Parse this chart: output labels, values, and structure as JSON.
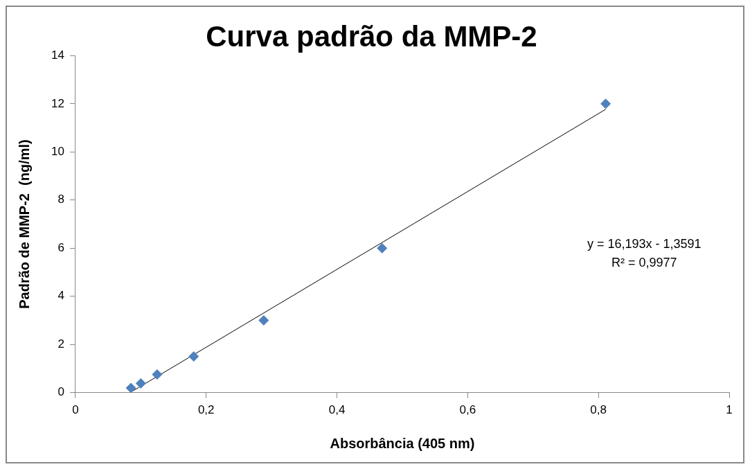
{
  "chart_data": {
    "type": "scatter",
    "title": "Curva padrão da MMP-2",
    "xlabel": "Absorbância (405 nm)",
    "ylabel": "Padrão de MMP-2  (ng/ml)",
    "series": [
      {
        "color": "#4f81bd",
        "marker": "diamond",
        "x": [
          0.085,
          0.1,
          0.125,
          0.181,
          0.288,
          0.469,
          0.811
        ],
        "values": [
          0.19,
          0.38,
          0.75,
          1.5,
          3,
          6,
          12
        ]
      },
      {
        "type": "line",
        "color": "#000000",
        "marker": "none",
        "x": [
          0.085,
          0.811
        ],
        "values": [
          0.02,
          11.77
        ]
      }
    ],
    "xlim": [
      0,
      1
    ],
    "xticks": [
      0,
      {
        "value": 0.2,
        "label": "0,2"
      },
      {
        "value": 0.4,
        "label": "0,4"
      },
      {
        "value": 0.6,
        "label": "0,6"
      },
      {
        "value": 0.8,
        "label": "0,8"
      },
      1
    ],
    "ylim": [
      0,
      14
    ],
    "yticks": [
      0,
      2,
      4,
      6,
      8,
      10,
      12,
      14
    ],
    "annotations": [
      "y = 16,193x - 1,3591",
      "R² = 0,9977"
    ],
    "grid": false,
    "legend": false
  }
}
